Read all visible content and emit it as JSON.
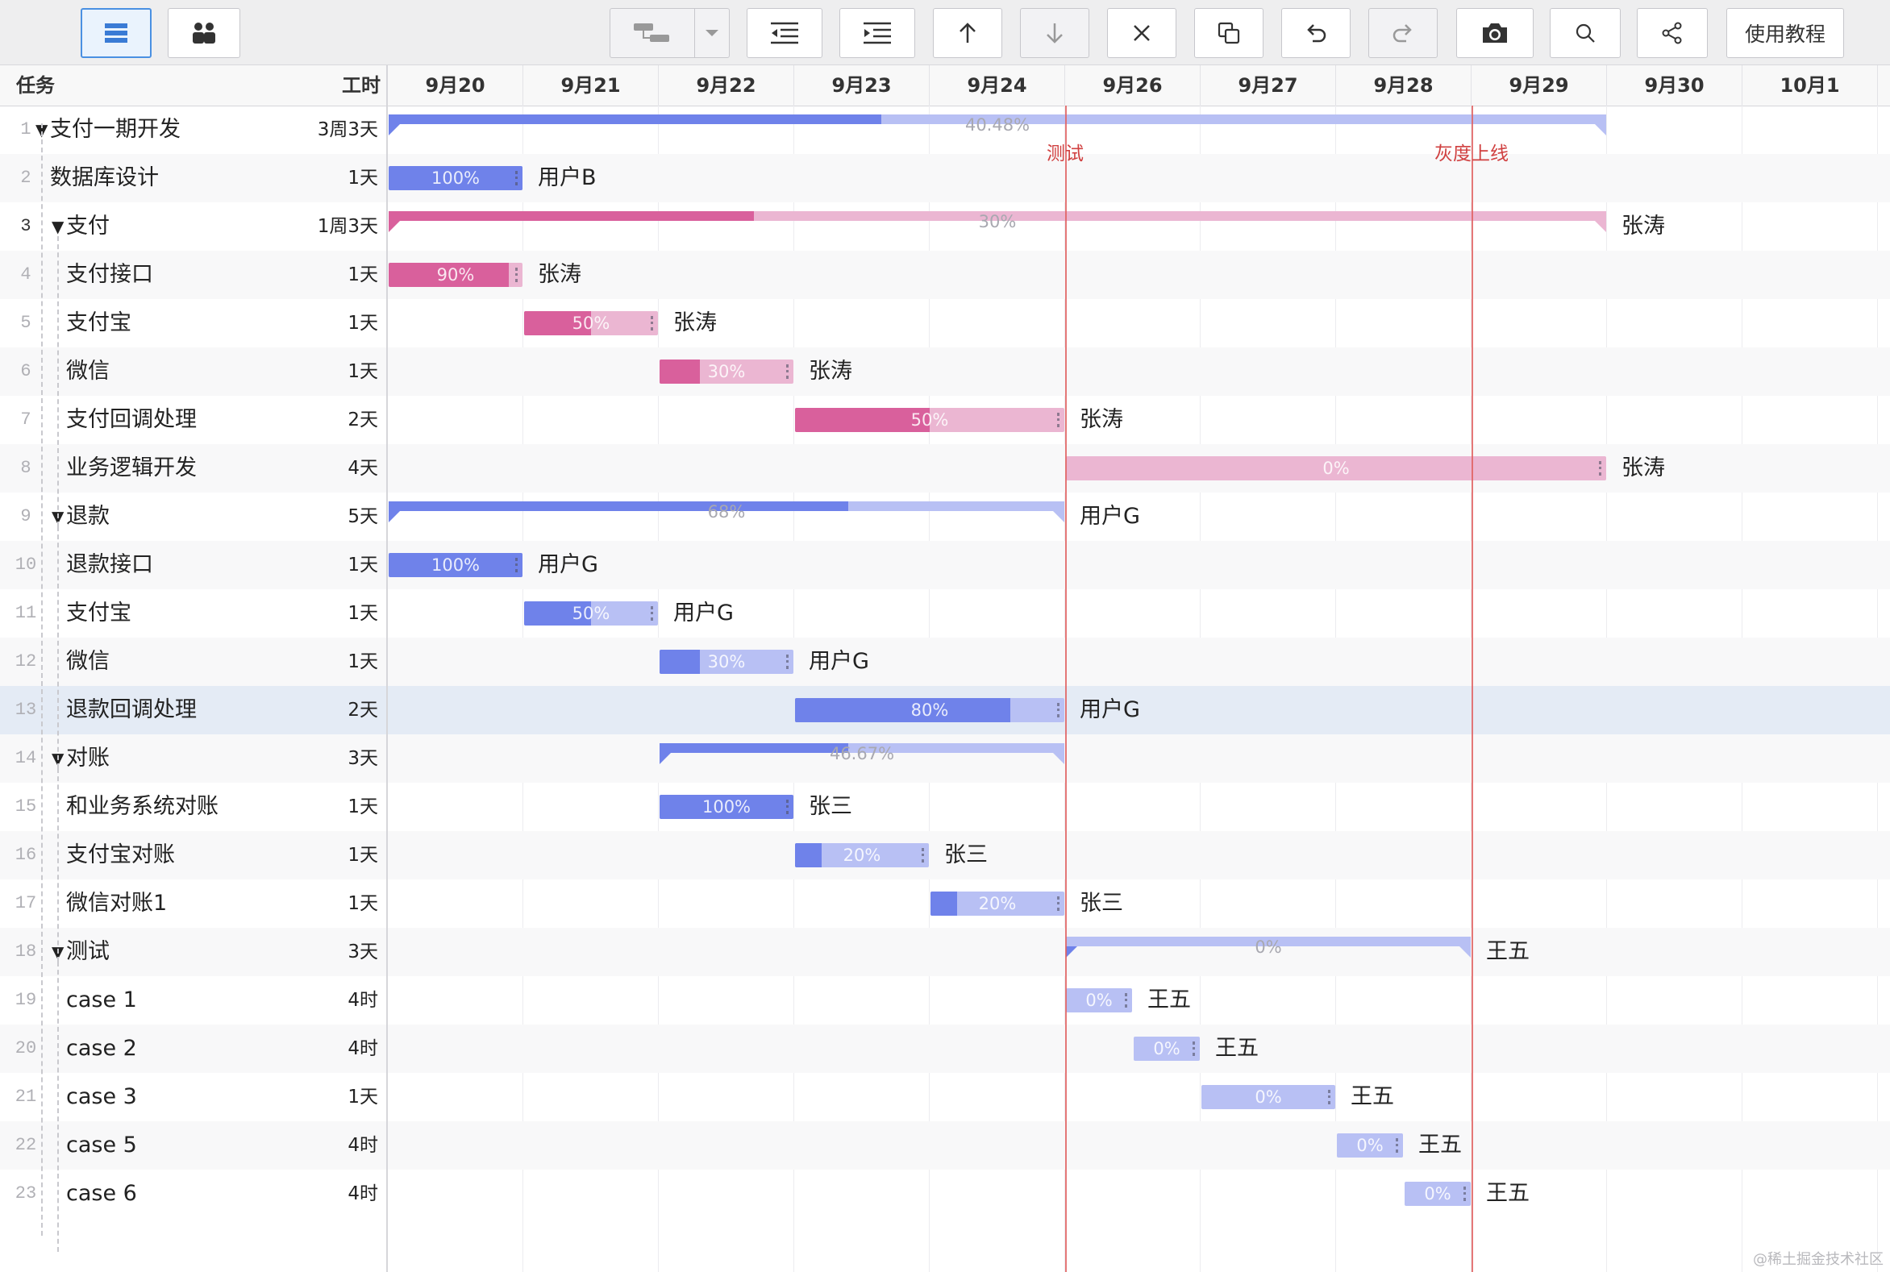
{
  "toolbar": {
    "buttons": [
      {
        "name": "list-view",
        "icon": "list-icon",
        "active": true
      },
      {
        "name": "people-view",
        "icon": "people-icon"
      },
      {
        "name": "link-tasks",
        "icon": "link-tasks-icon",
        "disabled": true
      },
      {
        "name": "link-type-dropdown",
        "icon": "chevron-down-icon",
        "disabled": true
      },
      {
        "name": "outdent",
        "icon": "outdent-icon"
      },
      {
        "name": "indent",
        "icon": "indent-icon"
      },
      {
        "name": "move-up",
        "icon": "arrow-up-icon"
      },
      {
        "name": "move-down",
        "icon": "arrow-down-icon",
        "disabled": true
      },
      {
        "name": "delete",
        "icon": "close-icon"
      },
      {
        "name": "copy",
        "icon": "copy-icon"
      },
      {
        "name": "undo",
        "icon": "undo-icon"
      },
      {
        "name": "redo",
        "icon": "redo-icon",
        "disabled": true
      },
      {
        "name": "screenshot",
        "icon": "camera-icon"
      },
      {
        "name": "search",
        "icon": "search-icon"
      },
      {
        "name": "share",
        "icon": "share-icon"
      }
    ],
    "tutorial_label": "使用教程"
  },
  "table_header": {
    "task": "任务",
    "duration": "工时"
  },
  "timeline": {
    "dates": [
      "9月20",
      "9月21",
      "9月22",
      "9月23",
      "9月24",
      "9月26",
      "9月27",
      "9月28",
      "9月29",
      "9月30",
      "10月1"
    ]
  },
  "milestones": [
    {
      "label": "测试",
      "day": 5
    },
    {
      "label": "灰度上线",
      "day": 8
    }
  ],
  "colors": {
    "blue_fill": "#6f82ea",
    "blue_track": "#b8c0f4",
    "pink_fill": "#d9609c",
    "pink_track": "#ebb6d2",
    "milestone": "#e06060"
  },
  "tasks": [
    {
      "id": "1",
      "name": "支付一期开发",
      "duration": "3周3天",
      "level": 0,
      "group": true,
      "start": 0,
      "span": 9,
      "progress": 0.4048,
      "pct": "40.48%",
      "color": "blue",
      "assignee": ""
    },
    {
      "id": "2",
      "name": "数据库设计",
      "duration": "1天",
      "level": 1,
      "group": false,
      "start": 0,
      "span": 1,
      "progress": 1.0,
      "pct": "100%",
      "color": "blue",
      "assignee": "用户B"
    },
    {
      "id": "3",
      "name": "支付",
      "duration": "1周3天",
      "level": 1,
      "group": true,
      "start": 0,
      "span": 9,
      "progress": 0.3,
      "pct": "30%",
      "color": "pink",
      "assignee": "张涛"
    },
    {
      "id": "4",
      "name": "支付接口",
      "duration": "1天",
      "level": 2,
      "group": false,
      "start": 0,
      "span": 1,
      "progress": 0.9,
      "pct": "90%",
      "color": "pink",
      "assignee": "张涛"
    },
    {
      "id": "5",
      "name": "支付宝",
      "duration": "1天",
      "level": 2,
      "group": false,
      "start": 1,
      "span": 1,
      "progress": 0.5,
      "pct": "50%",
      "color": "pink",
      "assignee": "张涛"
    },
    {
      "id": "6",
      "name": "微信",
      "duration": "1天",
      "level": 2,
      "group": false,
      "start": 2,
      "span": 1,
      "progress": 0.3,
      "pct": "30%",
      "color": "pink",
      "assignee": "张涛"
    },
    {
      "id": "7",
      "name": "支付回调处理",
      "duration": "2天",
      "level": 2,
      "group": false,
      "start": 3,
      "span": 2,
      "progress": 0.5,
      "pct": "50%",
      "color": "pink",
      "assignee": "张涛"
    },
    {
      "id": "8",
      "name": "业务逻辑开发",
      "duration": "4天",
      "level": 2,
      "group": false,
      "start": 5,
      "span": 4,
      "progress": 0.0,
      "pct": "0%",
      "color": "pink",
      "assignee": "张涛"
    },
    {
      "id": "9",
      "name": "退款",
      "duration": "5天",
      "level": 1,
      "group": true,
      "start": 0,
      "span": 5,
      "progress": 0.68,
      "pct": "68%",
      "color": "blue",
      "assignee": "用户G"
    },
    {
      "id": "10",
      "name": "退款接口",
      "duration": "1天",
      "level": 2,
      "group": false,
      "start": 0,
      "span": 1,
      "progress": 1.0,
      "pct": "100%",
      "color": "blue",
      "assignee": "用户G"
    },
    {
      "id": "11",
      "name": "支付宝",
      "duration": "1天",
      "level": 2,
      "group": false,
      "start": 1,
      "span": 1,
      "progress": 0.5,
      "pct": "50%",
      "color": "blue",
      "assignee": "用户G"
    },
    {
      "id": "12",
      "name": "微信",
      "duration": "1天",
      "level": 2,
      "group": false,
      "start": 2,
      "span": 1,
      "progress": 0.3,
      "pct": "30%",
      "color": "blue",
      "assignee": "用户G"
    },
    {
      "id": "13",
      "name": "退款回调处理",
      "duration": "2天",
      "level": 2,
      "group": false,
      "start": 3,
      "span": 2,
      "progress": 0.8,
      "pct": "80%",
      "color": "blue",
      "assignee": "用户G",
      "selected": true
    },
    {
      "id": "14",
      "name": "对账",
      "duration": "3天",
      "level": 1,
      "group": true,
      "start": 2,
      "span": 3,
      "progress": 0.4667,
      "pct": "46.67%",
      "color": "blue",
      "assignee": ""
    },
    {
      "id": "15",
      "name": "和业务系统对账",
      "duration": "1天",
      "level": 2,
      "group": false,
      "start": 2,
      "span": 1,
      "progress": 1.0,
      "pct": "100%",
      "color": "blue",
      "assignee": "张三"
    },
    {
      "id": "16",
      "name": "支付宝对账",
      "duration": "1天",
      "level": 2,
      "group": false,
      "start": 3,
      "span": 1,
      "progress": 0.2,
      "pct": "20%",
      "color": "blue",
      "assignee": "张三"
    },
    {
      "id": "17",
      "name": "微信对账1",
      "duration": "1天",
      "level": 2,
      "group": false,
      "start": 4,
      "span": 1,
      "progress": 0.2,
      "pct": "20%",
      "color": "blue",
      "assignee": "张三"
    },
    {
      "id": "18",
      "name": "测试",
      "duration": "3天",
      "level": 1,
      "group": true,
      "start": 5,
      "span": 3,
      "progress": 0.0,
      "pct": "0%",
      "color": "blue",
      "assignee": "王五"
    },
    {
      "id": "19",
      "name": "case 1",
      "duration": "4时",
      "level": 2,
      "group": false,
      "start": 5,
      "span": 0.5,
      "progress": 0.0,
      "pct": "0%",
      "color": "blue",
      "assignee": "王五"
    },
    {
      "id": "20",
      "name": "case 2",
      "duration": "4时",
      "level": 2,
      "group": false,
      "start": 5.5,
      "span": 0.5,
      "progress": 0.0,
      "pct": "0%",
      "color": "blue",
      "assignee": "王五"
    },
    {
      "id": "21",
      "name": "case 3",
      "duration": "1天",
      "level": 2,
      "group": false,
      "start": 6,
      "span": 1,
      "progress": 0.0,
      "pct": "0%",
      "color": "blue",
      "assignee": "王五"
    },
    {
      "id": "22",
      "name": "case 5",
      "duration": "4时",
      "level": 2,
      "group": false,
      "start": 7,
      "span": 0.5,
      "progress": 0.0,
      "pct": "0%",
      "color": "blue",
      "assignee": "王五"
    },
    {
      "id": "23",
      "name": "case 6",
      "duration": "4时",
      "level": 2,
      "group": false,
      "start": 7.5,
      "span": 0.5,
      "progress": 0.0,
      "pct": "0%",
      "color": "blue",
      "assignee": "王五"
    }
  ],
  "watermark": "@稀土掘金技术社区"
}
